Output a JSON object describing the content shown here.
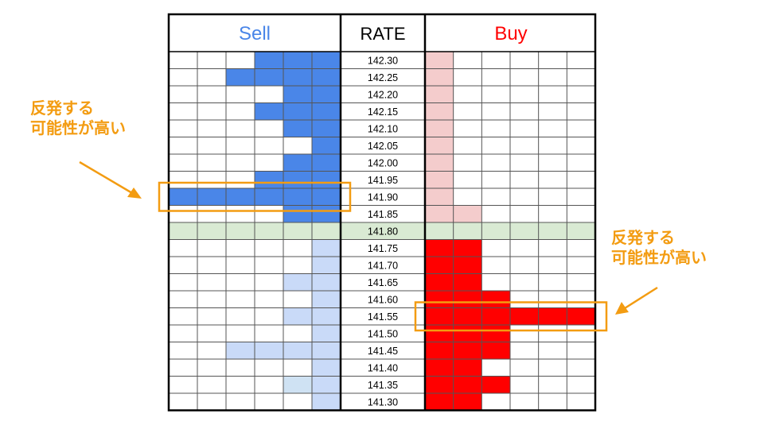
{
  "chart_data": {
    "type": "table",
    "columns": {
      "sell": "Sell",
      "rate": "RATE",
      "buy": "Buy"
    },
    "rates": [
      "142.30",
      "142.25",
      "142.20",
      "142.15",
      "142.10",
      "142.05",
      "142.00",
      "141.95",
      "141.90",
      "141.85",
      "141.80",
      "141.75",
      "141.70",
      "141.65",
      "141.60",
      "141.55",
      "141.50",
      "141.45",
      "141.40",
      "141.35",
      "141.30"
    ],
    "current_rate": "141.80",
    "sell_depth": [
      3,
      4,
      2,
      3,
      2,
      1,
      2,
      3,
      6,
      2,
      0,
      1,
      1,
      2,
      1,
      2,
      1,
      4,
      1,
      2,
      1
    ],
    "buy_depth": [
      1,
      1,
      1,
      1,
      1,
      1,
      1,
      1,
      1,
      2,
      0,
      2,
      2,
      2,
      3,
      6,
      3,
      3,
      2,
      3,
      2
    ],
    "highlight_rates": [
      "141.90",
      "141.55"
    ],
    "colors": {
      "sell_above": "#4a86e8",
      "sell_below": "#c9daf8",
      "sell_below_alt": "#cfe2f3",
      "buy_above": "#f4cccc",
      "buy_below": "#ff0000",
      "current_row": "#d9ead3",
      "highlight": "#f39c12",
      "sell_header": "#4a86e8",
      "buy_header": "#ff0000"
    }
  },
  "annotations": {
    "left": {
      "line1": "反発する",
      "line2": "可能性が高い"
    },
    "right": {
      "line1": "反発する",
      "line2": "可能性が高い"
    }
  }
}
